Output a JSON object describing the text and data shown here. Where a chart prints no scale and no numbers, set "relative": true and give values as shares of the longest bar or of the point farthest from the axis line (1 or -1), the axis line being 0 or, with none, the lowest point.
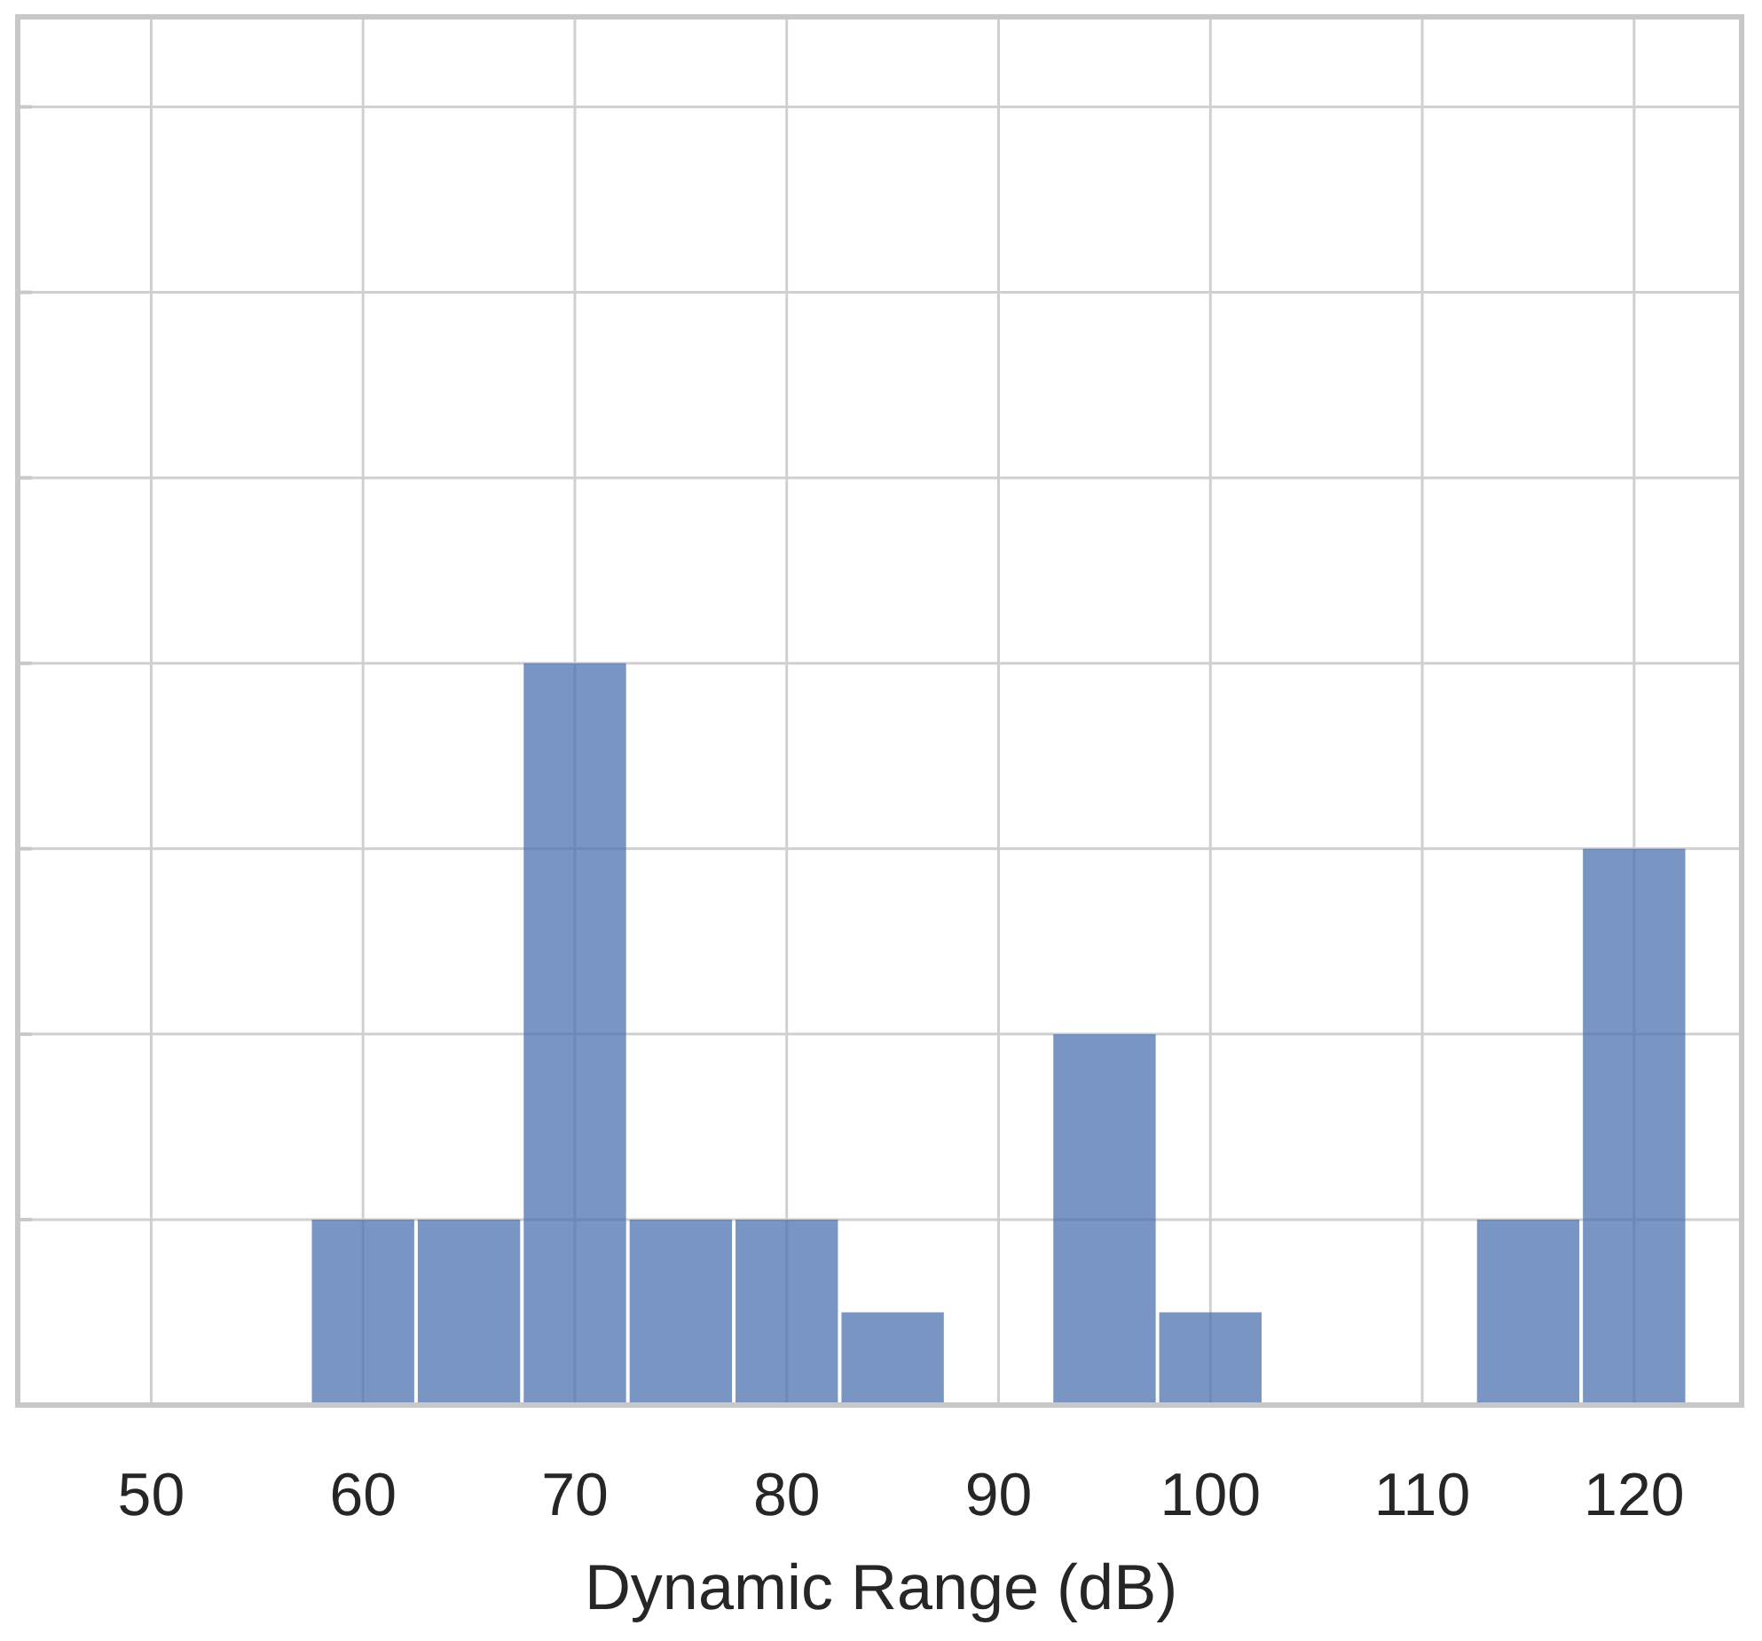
{
  "chart_data": {
    "type": "bar",
    "xlabel": "Dynamic Range (dB)",
    "relative": true,
    "x": [
      60,
      65,
      70,
      75,
      80,
      85,
      90,
      95,
      100,
      105,
      110,
      115,
      120
    ],
    "values": [
      0.25,
      0.25,
      1,
      0.25,
      0.25,
      0.125,
      0,
      0.5,
      0.125,
      0,
      0,
      0.25,
      0.75
    ],
    "color": "#4c72b0",
    "xlim": [
      43.7,
      125.2
    ],
    "xticks": [
      50,
      60,
      70,
      80,
      90,
      100,
      110,
      120
    ],
    "grid": true
  }
}
